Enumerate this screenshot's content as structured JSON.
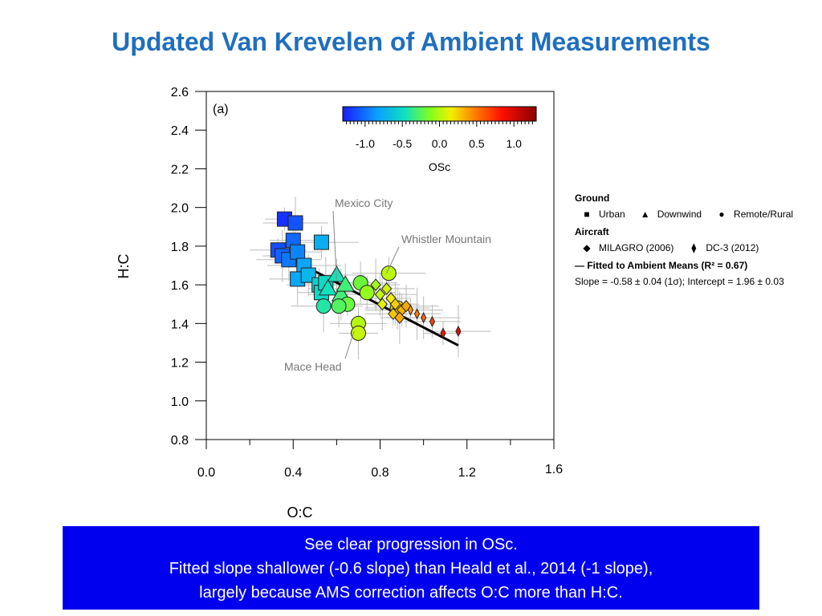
{
  "slide": {
    "title": "Updated Van Krevelen of Ambient Measurements",
    "caption": [
      "See clear progression in OSc.",
      "Fitted slope shallower (-0.6 slope) than Heald et al., 2014 (-1 slope),",
      "largely because AMS correction affects O:C more than H:C."
    ]
  },
  "legend": {
    "ground_header": "Ground",
    "urban": "Urban",
    "downwind": "Downwind",
    "remote": "Remote/Rural",
    "aircraft_header": "Aircraft",
    "milagro": "MILAGRO (2006)",
    "dc3": "DC-3 (2012)",
    "fit": "— Fitted to Ambient Means (R² = 0.67)",
    "stats": "Slope = -0.58 ± 0.04 (1σ); Intercept = 1.96 ± 0.03"
  },
  "chart_data": {
    "type": "scatter",
    "panel_label": "(a)",
    "xlabel": "O:C",
    "ylabel": "H:C",
    "xlim": [
      0.0,
      1.6
    ],
    "ylim": [
      0.8,
      2.6
    ],
    "xticks": [
      "0.0",
      "0.4",
      "0.8",
      "1.2",
      "1.6"
    ],
    "yticks": [
      "0.8",
      "1.0",
      "1.2",
      "1.4",
      "1.6",
      "1.8",
      "2.0",
      "2.2",
      "2.4",
      "2.6"
    ],
    "colorbar": {
      "label": "OSc",
      "range": [
        -1.3,
        1.3
      ],
      "ticks": [
        "-1.0",
        "-0.5",
        "0.0",
        "0.5",
        "1.0"
      ],
      "position": "top-right"
    },
    "fit_line": {
      "slope": -0.58,
      "intercept": 1.96,
      "x_range": [
        0.36,
        1.16
      ]
    },
    "annotations": [
      {
        "text": "Mexico City",
        "target": [
          0.6,
          1.62
        ]
      },
      {
        "text": "Whistler Mountain",
        "target": [
          0.83,
          1.66
        ]
      },
      {
        "text": "Mace Head",
        "target": [
          0.68,
          1.36
        ]
      }
    ],
    "series": [
      {
        "name": "Urban",
        "marker": "square",
        "points": [
          {
            "x": 0.36,
            "y": 1.94
          },
          {
            "x": 0.41,
            "y": 1.92
          },
          {
            "x": 0.4,
            "y": 1.83
          },
          {
            "x": 0.53,
            "y": 1.82
          },
          {
            "x": 0.33,
            "y": 1.78
          },
          {
            "x": 0.35,
            "y": 1.75
          },
          {
            "x": 0.38,
            "y": 1.73
          },
          {
            "x": 0.42,
            "y": 1.77
          },
          {
            "x": 0.45,
            "y": 1.7
          },
          {
            "x": 0.42,
            "y": 1.63
          },
          {
            "x": 0.47,
            "y": 1.65
          },
          {
            "x": 0.52,
            "y": 1.6
          },
          {
            "x": 0.53,
            "y": 1.56
          },
          {
            "x": 0.55,
            "y": 1.61
          }
        ]
      },
      {
        "name": "Downwind",
        "marker": "triangle",
        "points": [
          {
            "x": 0.6,
            "y": 1.65
          },
          {
            "x": 0.56,
            "y": 1.58
          },
          {
            "x": 0.62,
            "y": 1.55
          },
          {
            "x": 0.64,
            "y": 1.6
          }
        ]
      },
      {
        "name": "Remote/Rural",
        "marker": "circle",
        "points": [
          {
            "x": 0.71,
            "y": 1.61
          },
          {
            "x": 0.74,
            "y": 1.56
          },
          {
            "x": 0.65,
            "y": 1.5
          },
          {
            "x": 0.54,
            "y": 1.49
          },
          {
            "x": 0.61,
            "y": 1.49
          },
          {
            "x": 0.84,
            "y": 1.66
          },
          {
            "x": 0.7,
            "y": 1.4
          },
          {
            "x": 0.7,
            "y": 1.35
          },
          {
            "x": 0.88,
            "y": 1.48
          }
        ]
      },
      {
        "name": "MILAGRO (2006)",
        "marker": "diamond",
        "points": [
          {
            "x": 0.78,
            "y": 1.6
          },
          {
            "x": 0.8,
            "y": 1.55
          },
          {
            "x": 0.83,
            "y": 1.58
          },
          {
            "x": 0.85,
            "y": 1.53
          },
          {
            "x": 0.81,
            "y": 1.5
          },
          {
            "x": 0.87,
            "y": 1.5
          },
          {
            "x": 0.9,
            "y": 1.47
          },
          {
            "x": 0.86,
            "y": 1.45
          },
          {
            "x": 0.89,
            "y": 1.43
          },
          {
            "x": 0.92,
            "y": 1.49
          }
        ]
      },
      {
        "name": "DC-3 (2012)",
        "marker": "thin-diamond",
        "points": [
          {
            "x": 0.94,
            "y": 1.47
          },
          {
            "x": 0.97,
            "y": 1.45
          },
          {
            "x": 1.0,
            "y": 1.43
          },
          {
            "x": 1.04,
            "y": 1.41
          },
          {
            "x": 1.09,
            "y": 1.35
          },
          {
            "x": 1.16,
            "y": 1.36
          }
        ]
      }
    ]
  }
}
